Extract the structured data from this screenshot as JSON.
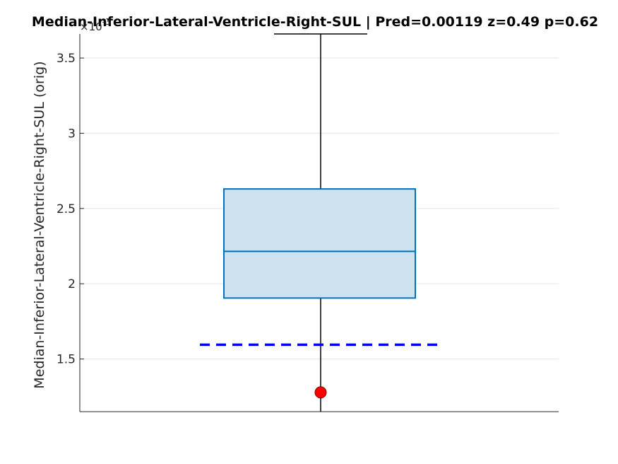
{
  "chart_data": {
    "type": "box",
    "title": "Median-Inferior-Lateral-Ventricle-Right-SUL  |  Pred=0.00119  z=0.49  p=0.62",
    "ylabel": "Median-Inferior-Lateral-Ventricle-Right-SUL (orig)",
    "y_multiplier_label": "×10",
    "y_multiplier_exponent": "-3",
    "ylim": [
      0.00115,
      0.00366
    ],
    "yticks": [
      0.0015,
      0.002,
      0.0025,
      0.003,
      0.0035
    ],
    "ytick_labels": [
      "1.5",
      "2",
      "2.5",
      "3",
      "3.5"
    ],
    "grid": true,
    "box": {
      "q1": 0.001905,
      "median": 0.002215,
      "q3": 0.00263,
      "whisker_low": 0.00115,
      "whisker_high": 0.00366
    },
    "reference_line": {
      "value": 0.001595,
      "style": "dashed",
      "color": "#0000ff"
    },
    "marker": {
      "value": 0.001278,
      "color": "#ff0000"
    },
    "colors": {
      "box_fill": "#cde1ef",
      "box_edge": "#0072bd",
      "whisker": "#000000",
      "grid": "#e5e5e5"
    }
  }
}
